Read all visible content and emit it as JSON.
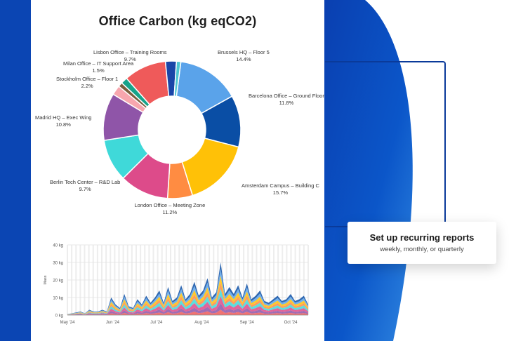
{
  "colors": {
    "brand_blue": "#0b45b3",
    "arc_blue": "#0a3a9a",
    "card_bg": "#ffffff"
  },
  "callout": {
    "title": "Set up recurring reports",
    "subtitle": "weekly, monthly, or quarterly"
  },
  "chart_data": [
    {
      "type": "pie",
      "title": "Office Carbon (kg eqCO2)",
      "donut": true,
      "slices": [
        {
          "label": "Brussels HQ – Floor 5",
          "pct_label": "14.4%",
          "value": 14.4,
          "color": "#5aa3ea"
        },
        {
          "label": "Barcelona Office – Ground Floor",
          "pct_label": "11.8%",
          "value": 11.8,
          "color": "#0a4ea5"
        },
        {
          "label": "Amsterdam Campus – Building C",
          "pct_label": "15.7%",
          "value": 15.7,
          "color": "#ffc107"
        },
        {
          "label": "",
          "pct_label": "",
          "value": 5.7,
          "color": "#ff8c42"
        },
        {
          "label": "London Office – Meeting Zone",
          "pct_label": "11.2%",
          "value": 11.2,
          "color": "#dd4b8a"
        },
        {
          "label": "Berlin Tech Center – R&D Lab",
          "pct_label": "9.7%",
          "value": 9.7,
          "color": "#3fd9d9"
        },
        {
          "label": "Madrid HQ – Exec Wing",
          "pct_label": "10.8%",
          "value": 10.8,
          "color": "#8f55a8"
        },
        {
          "label": "Stockholm Office – Floor 1",
          "pct_label": "2.2%",
          "value": 2.2,
          "color": "#f7a6ae"
        },
        {
          "label": "",
          "pct_label": "",
          "value": 1.0,
          "color": "#7b5f3e"
        },
        {
          "label": "Milan Office – IT Support Area",
          "pct_label": "1.5%",
          "value": 1.5,
          "color": "#17a38a"
        },
        {
          "label": "Lisbon Office – Training Rooms",
          "pct_label": "9.7%",
          "value": 9.7,
          "color": "#ef5a5a"
        },
        {
          "label": "",
          "pct_label": "",
          "value": 2.5,
          "color": "#1a46a8"
        },
        {
          "label": "",
          "pct_label": "",
          "value": 1.0,
          "color": "#4ec6d1"
        }
      ]
    },
    {
      "type": "area",
      "title": "",
      "ylabel": "Mass",
      "ylim": [
        0,
        40
      ],
      "y_ticks": [
        "0 kg",
        "10 kg",
        "20 kg",
        "30 kg",
        "40 kg"
      ],
      "x_ticks": [
        "May '24",
        "Jun '24",
        "Jul '24",
        "Aug '24",
        "Sep '24",
        "Oct '24"
      ],
      "stacked": true,
      "series_colors": [
        "#ef5a5a",
        "#8f55a8",
        "#dd4b8a",
        "#3fd9d9",
        "#ff8c42",
        "#ffc107",
        "#5aa3ea",
        "#0a4ea5"
      ],
      "x_days": [
        0,
        3,
        6,
        9,
        12,
        15,
        18,
        21,
        24,
        27,
        30,
        33,
        36,
        39,
        42,
        45,
        48,
        51,
        54,
        57,
        60,
        63,
        66,
        69,
        72,
        75,
        78,
        81,
        84,
        87,
        90,
        93,
        96,
        99,
        102,
        105,
        108,
        111,
        114,
        117,
        120,
        123,
        126,
        129,
        132,
        135,
        138,
        141,
        144,
        147,
        150,
        153,
        156,
        159,
        162,
        165
      ],
      "totals": [
        0.5,
        1,
        1.5,
        2,
        1,
        3,
        2,
        2,
        3,
        2,
        10,
        6,
        4,
        12,
        5,
        4,
        9,
        6,
        11,
        7,
        10,
        14,
        7,
        16,
        8,
        10,
        17,
        9,
        12,
        19,
        11,
        14,
        21,
        10,
        13,
        30,
        12,
        16,
        12,
        17,
        10,
        18,
        9,
        11,
        14,
        8,
        7,
        9,
        11,
        8,
        9,
        12,
        8,
        9,
        11,
        6
      ]
    }
  ]
}
